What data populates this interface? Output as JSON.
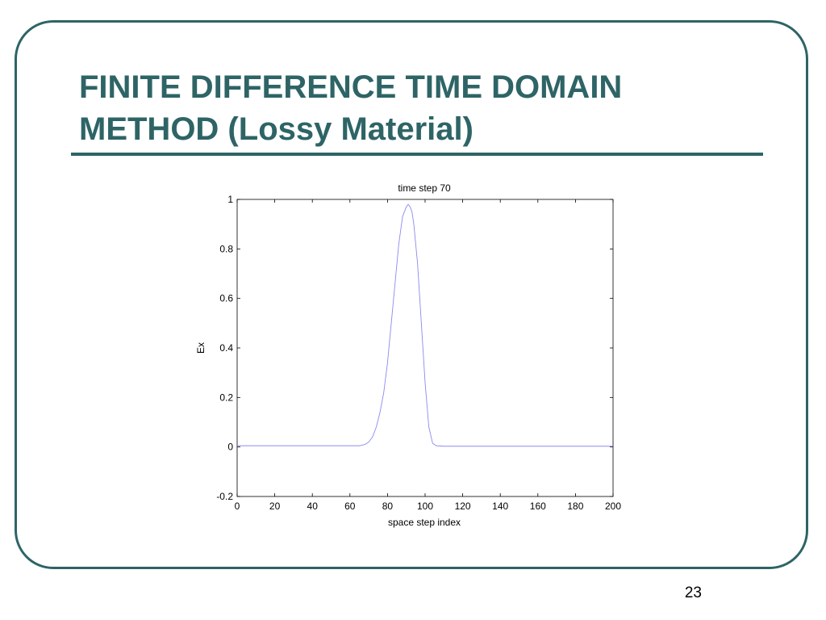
{
  "slide": {
    "title_line1": "FINITE DIFFERENCE TIME DOMAIN",
    "title_line2": "METHOD (Lossy Material)",
    "page_number": "23"
  },
  "colors": {
    "accent": "#2e6466",
    "curve": "#8a8af0"
  },
  "chart_data": {
    "type": "line",
    "title": "time step 70",
    "xlabel": "space step index",
    "ylabel": "Ex",
    "xlim": [
      0,
      200
    ],
    "ylim": [
      -0.2,
      1
    ],
    "xticks": [
      0,
      20,
      40,
      60,
      80,
      100,
      120,
      140,
      160,
      180,
      200
    ],
    "yticks": [
      -0.2,
      0,
      0.2,
      0.4,
      0.6,
      0.8,
      1
    ],
    "grid": false,
    "series": [
      {
        "name": "",
        "x": [
          0,
          20,
          40,
          60,
          65,
          68,
          70,
          72,
          74,
          76,
          78,
          80,
          82,
          84,
          86,
          88,
          90,
          91,
          92,
          93,
          94,
          96,
          98,
          100,
          102,
          104,
          106,
          110,
          120,
          140,
          160,
          180,
          200
        ],
        "y": [
          0.005,
          0.005,
          0.005,
          0.005,
          0.005,
          0.01,
          0.02,
          0.04,
          0.08,
          0.14,
          0.22,
          0.34,
          0.5,
          0.66,
          0.82,
          0.93,
          0.97,
          0.98,
          0.97,
          0.95,
          0.9,
          0.74,
          0.5,
          0.26,
          0.08,
          0.015,
          0.005,
          0.003,
          0.003,
          0.003,
          0.003,
          0.003,
          0.003
        ]
      }
    ]
  }
}
